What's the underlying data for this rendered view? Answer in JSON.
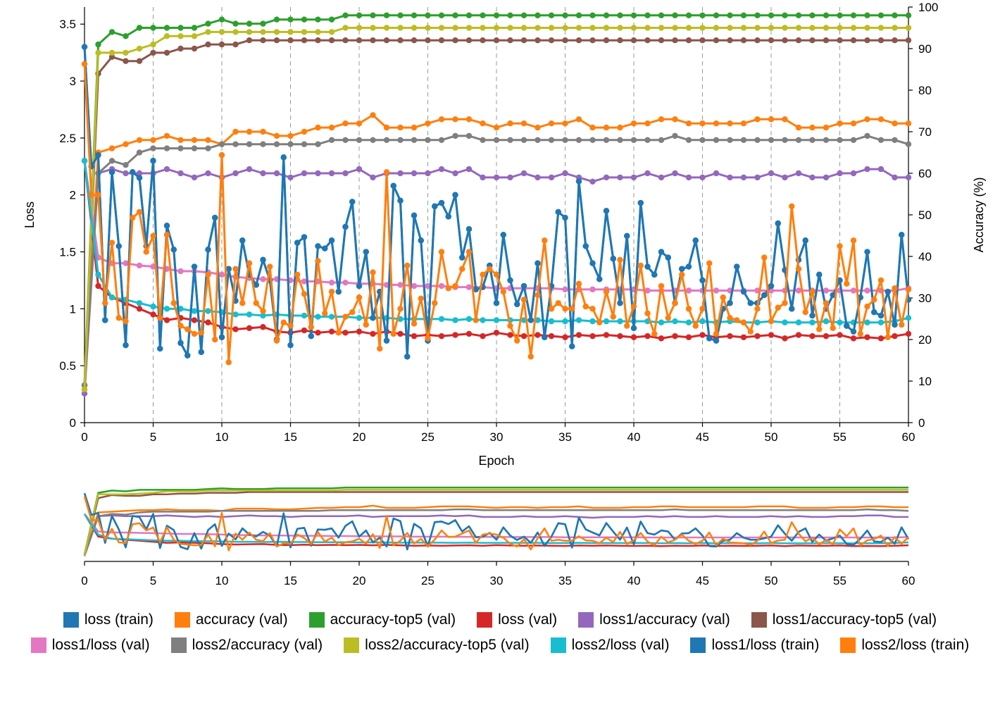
{
  "chart_data": {
    "type": "line",
    "xlabel": "Epoch",
    "ylabel_left": "Loss",
    "ylabel_right": "Accuracy (%)",
    "xlim": [
      0,
      60
    ],
    "ylim_left": [
      0,
      3.65
    ],
    "ylim_right": [
      0,
      100
    ],
    "x_ticks": [
      0,
      5,
      10,
      15,
      20,
      25,
      30,
      35,
      40,
      45,
      50,
      55,
      60
    ],
    "y_ticks_left": [
      0,
      0.5,
      1,
      1.5,
      2,
      2.5,
      3,
      3.5
    ],
    "y_ticks_right": [
      0,
      10,
      20,
      30,
      40,
      50,
      60,
      70,
      80,
      90,
      100
    ],
    "grid": "vertical dashed every 5 epochs",
    "legend": "bottom",
    "context_x_ticks": [
      0,
      5,
      10,
      15,
      20,
      25,
      30,
      35,
      40,
      45,
      50,
      55,
      60
    ],
    "series": [
      {
        "name": "loss (train)",
        "color": "#1f77b4",
        "axis": "left",
        "x_step": 0.5,
        "x_start": 0,
        "values": [
          3.3,
          2.25,
          2.35,
          0.9,
          2.2,
          1.55,
          0.68,
          2.2,
          2.15,
          1.55,
          2.3,
          0.65,
          1.73,
          1.52,
          0.7,
          0.59,
          1.37,
          0.62,
          1.52,
          1.8,
          0.75,
          1.35,
          1.07,
          1.6,
          1.3,
          1.21,
          1.43,
          1.25,
          0.73,
          2.33,
          0.68,
          1.58,
          1.63,
          0.76,
          1.55,
          1.53,
          1.6,
          1.15,
          1.72,
          1.94,
          1.2,
          1.5,
          0.92,
          1.15,
          0.72,
          2.08,
          1.95,
          0.58,
          1.82,
          1.6,
          0.72,
          1.9,
          1.93,
          1.81,
          2.0,
          1.45,
          1.7,
          1.17,
          1.19,
          1.38,
          1.05,
          1.65,
          1.25,
          1.04,
          1.2,
          0.9,
          1.4,
          0.75,
          1.2,
          1.85,
          1.8,
          0.67,
          2.12,
          1.55,
          1.4,
          1.26,
          1.86,
          1.44,
          1.05,
          1.64,
          0.83,
          1.93,
          1.37,
          1.3,
          1.5,
          1.45,
          1.05,
          1.35,
          1.37,
          1.6,
          1.25,
          0.74,
          0.72,
          1.0,
          1.05,
          1.37,
          1.15,
          1.05,
          1.05,
          1.12,
          1.2,
          1.75,
          1.34,
          1.0,
          1.43,
          1.6,
          0.94,
          1.3,
          1.0,
          1.12,
          1.25,
          0.85,
          0.8,
          1.1,
          1.5,
          0.97,
          0.94,
          1.15,
          0.86,
          1.65,
          1.08
        ]
      },
      {
        "name": "accuracy (val)",
        "color": "#ff7f0e",
        "axis": "right",
        "values": [
          8,
          65,
          66,
          67,
          68,
          68,
          69,
          68,
          68,
          68,
          67,
          70,
          70,
          70,
          69,
          69,
          70,
          71,
          71,
          72,
          72,
          74,
          71,
          71,
          71,
          72,
          73,
          73,
          73,
          72,
          71,
          72,
          72,
          71,
          72,
          72,
          73,
          71,
          71,
          71,
          72,
          72,
          73,
          73,
          72,
          72,
          72,
          72,
          72,
          73,
          73,
          73,
          71,
          71,
          71,
          72,
          72,
          73,
          73,
          72,
          72
        ]
      },
      {
        "name": "accuracy-top5 (val)",
        "color": "#2ca02c",
        "axis": "right",
        "values": [
          9,
          91,
          94,
          93,
          95,
          95,
          95,
          95,
          95,
          96,
          97,
          96,
          96,
          96,
          97,
          97,
          97,
          97,
          97,
          98,
          98,
          98,
          98,
          98,
          98,
          98,
          98,
          98,
          98,
          98,
          98,
          98,
          98,
          98,
          98,
          98,
          98,
          98,
          98,
          98,
          98,
          98,
          98,
          98,
          98,
          98,
          98,
          98,
          98,
          98,
          98,
          98,
          98,
          98,
          98,
          98,
          98,
          98,
          98,
          98,
          98
        ]
      },
      {
        "name": "loss (val)",
        "color": "#d62728",
        "axis": "left",
        "values": [
          2.3,
          1.2,
          1.1,
          1.05,
          1.0,
          0.95,
          0.9,
          0.92,
          0.9,
          0.88,
          0.84,
          0.82,
          0.83,
          0.84,
          0.8,
          0.79,
          0.81,
          0.79,
          0.8,
          0.79,
          0.8,
          0.78,
          0.8,
          0.78,
          0.76,
          0.77,
          0.76,
          0.77,
          0.78,
          0.76,
          0.79,
          0.77,
          0.76,
          0.77,
          0.76,
          0.75,
          0.77,
          0.76,
          0.77,
          0.76,
          0.75,
          0.76,
          0.74,
          0.76,
          0.75,
          0.77,
          0.75,
          0.76,
          0.75,
          0.76,
          0.77,
          0.74,
          0.77,
          0.76,
          0.76,
          0.77,
          0.74,
          0.75,
          0.74,
          0.76,
          0.78
        ]
      },
      {
        "name": "loss1/accuracy (val)",
        "color": "#9467bd",
        "axis": "right",
        "values": [
          7,
          60,
          61,
          60,
          60,
          60,
          61,
          60,
          59,
          60,
          59,
          60,
          61,
          60,
          60,
          59,
          60,
          60,
          60,
          60,
          61,
          59,
          60,
          60,
          60,
          60,
          61,
          60,
          61,
          59,
          59,
          59,
          60,
          59,
          59,
          60,
          59,
          58,
          59,
          59,
          59,
          60,
          59,
          60,
          59,
          59,
          60,
          59,
          59,
          59,
          60,
          59,
          60,
          59,
          59,
          60,
          60,
          61,
          61,
          59,
          59
        ]
      },
      {
        "name": "loss1/accuracy-top5 (val)",
        "color": "#8c564b",
        "axis": "right",
        "values": [
          9,
          84,
          88,
          87,
          87,
          89,
          89,
          90,
          90,
          91,
          91,
          91,
          92,
          92,
          92,
          92,
          92,
          92,
          92,
          92,
          92,
          92,
          92,
          92,
          92,
          92,
          92,
          92,
          92,
          92,
          92,
          92,
          92,
          92,
          92,
          92,
          92,
          92,
          92,
          92,
          92,
          92,
          92,
          92,
          92,
          92,
          92,
          92,
          92,
          92,
          92,
          92,
          92,
          92,
          92,
          92,
          92,
          92,
          92,
          92,
          92
        ]
      },
      {
        "name": "loss1/loss (val)",
        "color": "#e377c2",
        "axis": "left",
        "values": [
          2.3,
          1.45,
          1.4,
          1.4,
          1.38,
          1.37,
          1.35,
          1.33,
          1.33,
          1.32,
          1.3,
          1.28,
          1.27,
          1.26,
          1.26,
          1.25,
          1.24,
          1.24,
          1.23,
          1.23,
          1.22,
          1.22,
          1.21,
          1.21,
          1.2,
          1.2,
          1.2,
          1.19,
          1.19,
          1.19,
          1.18,
          1.18,
          1.18,
          1.18,
          1.18,
          1.17,
          1.17,
          1.17,
          1.17,
          1.17,
          1.17,
          1.16,
          1.16,
          1.16,
          1.16,
          1.16,
          1.16,
          1.16,
          1.16,
          1.16,
          1.16,
          1.16,
          1.16,
          1.16,
          1.16,
          1.16,
          1.16,
          1.16,
          1.16,
          1.16,
          1.18
        ]
      },
      {
        "name": "loss2/accuracy (val)",
        "color": "#7f7f7f",
        "axis": "right",
        "values": [
          9,
          60,
          63,
          62,
          65,
          66,
          66,
          66,
          66,
          66,
          67,
          67,
          67,
          67,
          67,
          67,
          67,
          67,
          68,
          68,
          68,
          68,
          68,
          68,
          68,
          68,
          68,
          69,
          69,
          68,
          68,
          68,
          68,
          68,
          68,
          68,
          68,
          68,
          68,
          68,
          68,
          68,
          68,
          69,
          68,
          68,
          68,
          68,
          68,
          68,
          68,
          68,
          68,
          68,
          68,
          68,
          68,
          69,
          68,
          68,
          67
        ]
      },
      {
        "name": "loss2/accuracy-top5 (val)",
        "color": "#bcbd22",
        "axis": "right",
        "values": [
          8,
          89,
          89,
          89,
          90,
          91,
          93,
          93,
          93,
          94,
          94,
          94,
          94,
          94,
          94,
          94,
          94,
          94,
          94,
          95,
          95,
          95,
          95,
          95,
          95,
          95,
          95,
          95,
          95,
          95,
          95,
          95,
          95,
          95,
          95,
          95,
          95,
          95,
          95,
          95,
          95,
          95,
          95,
          95,
          95,
          95,
          95,
          95,
          95,
          95,
          95,
          95,
          95,
          95,
          95,
          95,
          95,
          95,
          95,
          95,
          95
        ]
      },
      {
        "name": "loss2/loss (val)",
        "color": "#17becf",
        "axis": "left",
        "values": [
          2.3,
          1.3,
          1.1,
          1.08,
          1.05,
          1.02,
          1.0,
          1.0,
          0.98,
          0.98,
          0.97,
          0.95,
          0.95,
          0.94,
          0.95,
          0.94,
          0.94,
          0.93,
          0.93,
          0.93,
          0.92,
          0.92,
          0.92,
          0.91,
          0.91,
          0.91,
          0.91,
          0.9,
          0.91,
          0.9,
          0.9,
          0.9,
          0.9,
          0.9,
          0.89,
          0.89,
          0.9,
          0.89,
          0.89,
          0.89,
          0.89,
          0.89,
          0.88,
          0.89,
          0.88,
          0.89,
          0.88,
          0.89,
          0.88,
          0.88,
          0.89,
          0.88,
          0.88,
          0.88,
          0.89,
          0.88,
          0.88,
          0.88,
          0.88,
          0.89,
          0.92
        ]
      },
      {
        "name": "loss1/loss (train)",
        "color": "#1f77b4",
        "axis": "left",
        "x_step": 0.5,
        "x_start": 0,
        "values": [
          3.3,
          2.25,
          2.35,
          0.9,
          2.2,
          1.55,
          0.68,
          2.2,
          2.15,
          1.55,
          2.3,
          0.65,
          1.73,
          1.52,
          0.7,
          0.59,
          1.37,
          0.62,
          1.52,
          1.8,
          0.75,
          1.35,
          1.07,
          1.6,
          1.3,
          1.21,
          1.43,
          1.25,
          0.73,
          2.33,
          0.68,
          1.58,
          1.63,
          0.76,
          1.55,
          1.53,
          1.6,
          1.15,
          1.72,
          1.94,
          1.2,
          1.5,
          0.92,
          1.15,
          0.72,
          2.08,
          1.95,
          0.58,
          1.82,
          1.6,
          0.72,
          1.9,
          1.93,
          1.81,
          2.0,
          1.45,
          1.7,
          1.17,
          1.19,
          1.38,
          1.05,
          1.65,
          1.25,
          1.04,
          1.2,
          0.9,
          1.4,
          0.75,
          1.2,
          1.85,
          1.8,
          0.67,
          2.12,
          1.55,
          1.4,
          1.26,
          1.86,
          1.44,
          1.05,
          1.64,
          0.83,
          1.93,
          1.37,
          1.3,
          1.5,
          1.45,
          1.05,
          1.35,
          1.37,
          1.6,
          1.25,
          0.74,
          0.72,
          1.0,
          1.05,
          1.37,
          1.15,
          1.05,
          1.05,
          1.12,
          1.2,
          1.75,
          1.34,
          1.0,
          1.43,
          1.6,
          0.94,
          1.3,
          1.0,
          1.12,
          1.25,
          0.85,
          0.8,
          1.1,
          1.5,
          0.97,
          0.94,
          1.15,
          0.86,
          1.65,
          1.08
        ]
      },
      {
        "name": "loss2/loss (train)",
        "color": "#ff7f0e",
        "axis": "left",
        "x_step": 0.5,
        "x_start": 0,
        "values": [
          3.15,
          2.0,
          2.0,
          1.05,
          1.58,
          0.92,
          0.89,
          1.8,
          1.85,
          1.5,
          1.64,
          0.92,
          1.65,
          1.05,
          0.85,
          0.82,
          0.78,
          0.79,
          1.3,
          0.73,
          2.35,
          0.53,
          1.35,
          1.05,
          1.4,
          1.05,
          0.98,
          1.37,
          0.72,
          0.88,
          0.85,
          1.3,
          1.13,
          0.84,
          1.42,
          0.96,
          1.15,
          0.79,
          0.93,
          0.97,
          1.1,
          0.86,
          1.32,
          0.65,
          2.2,
          0.78,
          1.0,
          1.38,
          0.87,
          1.09,
          0.74,
          1.05,
          1.5,
          1.18,
          1.2,
          1.35,
          1.5,
          0.9,
          1.3,
          1.35,
          1.3,
          1.15,
          0.85,
          0.72,
          1.08,
          0.58,
          1.12,
          1.6,
          1.0,
          1.05,
          1.0,
          1.0,
          1.22,
          1.02,
          1.0,
          0.88,
          1.15,
          0.93,
          1.43,
          0.85,
          1.02,
          1.38,
          0.96,
          0.78,
          1.2,
          0.92,
          1.05,
          1.3,
          1.0,
          0.85,
          1.0,
          1.4,
          0.78,
          1.1,
          0.92,
          0.9,
          0.88,
          0.8,
          1.0,
          1.45,
          0.89,
          1.01,
          1.05,
          1.9,
          1.35,
          0.97,
          1.15,
          0.82,
          1.05,
          0.83,
          1.55,
          1.22,
          1.6,
          0.78,
          1.02,
          1.08,
          1.25,
          0.75,
          1.18,
          0.86,
          1.17
        ]
      }
    ]
  },
  "legend_items": [
    {
      "label": "loss (train)",
      "color": "#1f77b4"
    },
    {
      "label": "accuracy (val)",
      "color": "#ff7f0e"
    },
    {
      "label": "accuracy-top5 (val)",
      "color": "#2ca02c"
    },
    {
      "label": "loss (val)",
      "color": "#d62728"
    },
    {
      "label": "loss1/accuracy (val)",
      "color": "#9467bd"
    },
    {
      "label": "loss1/accuracy-top5 (val)",
      "color": "#8c564b"
    },
    {
      "label": "loss1/loss (val)",
      "color": "#e377c2"
    },
    {
      "label": "loss2/accuracy (val)",
      "color": "#7f7f7f"
    },
    {
      "label": "loss2/accuracy-top5 (val)",
      "color": "#bcbd22"
    },
    {
      "label": "loss2/loss (val)",
      "color": "#17becf"
    },
    {
      "label": "loss1/loss (train)",
      "color": "#1f77b4"
    },
    {
      "label": "loss2/loss (train)",
      "color": "#ff7f0e"
    }
  ]
}
